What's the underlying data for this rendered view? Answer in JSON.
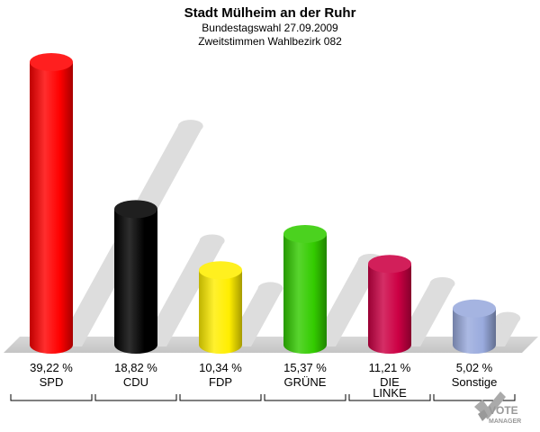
{
  "chart_data": {
    "type": "bar",
    "title": "Stadt Mülheim an der Ruhr",
    "subtitle_1": "Bundestagswahl 27.09.2009",
    "subtitle_2": "Zweitstimmen Wahlbezirk 082",
    "categories": [
      [
        "SPD"
      ],
      [
        "CDU"
      ],
      [
        "FDP"
      ],
      [
        "GRÜNE"
      ],
      [
        "DIE",
        "LINKE"
      ],
      [
        "Sonstige"
      ]
    ],
    "value_labels": [
      "39,22 %",
      "18,82 %",
      "10,34 %",
      "15,37 %",
      "11,21 %",
      "5,02 %"
    ],
    "values": [
      39.22,
      18.82,
      10.34,
      15.37,
      11.21,
      5.02
    ],
    "colors": [
      "#ff0000",
      "#000000",
      "#ffee00",
      "#33cc00",
      "#cc0044",
      "#99aadd"
    ],
    "unit": "%"
  },
  "logo": {
    "line1": "VOTE",
    "line2": "MANAGER"
  }
}
